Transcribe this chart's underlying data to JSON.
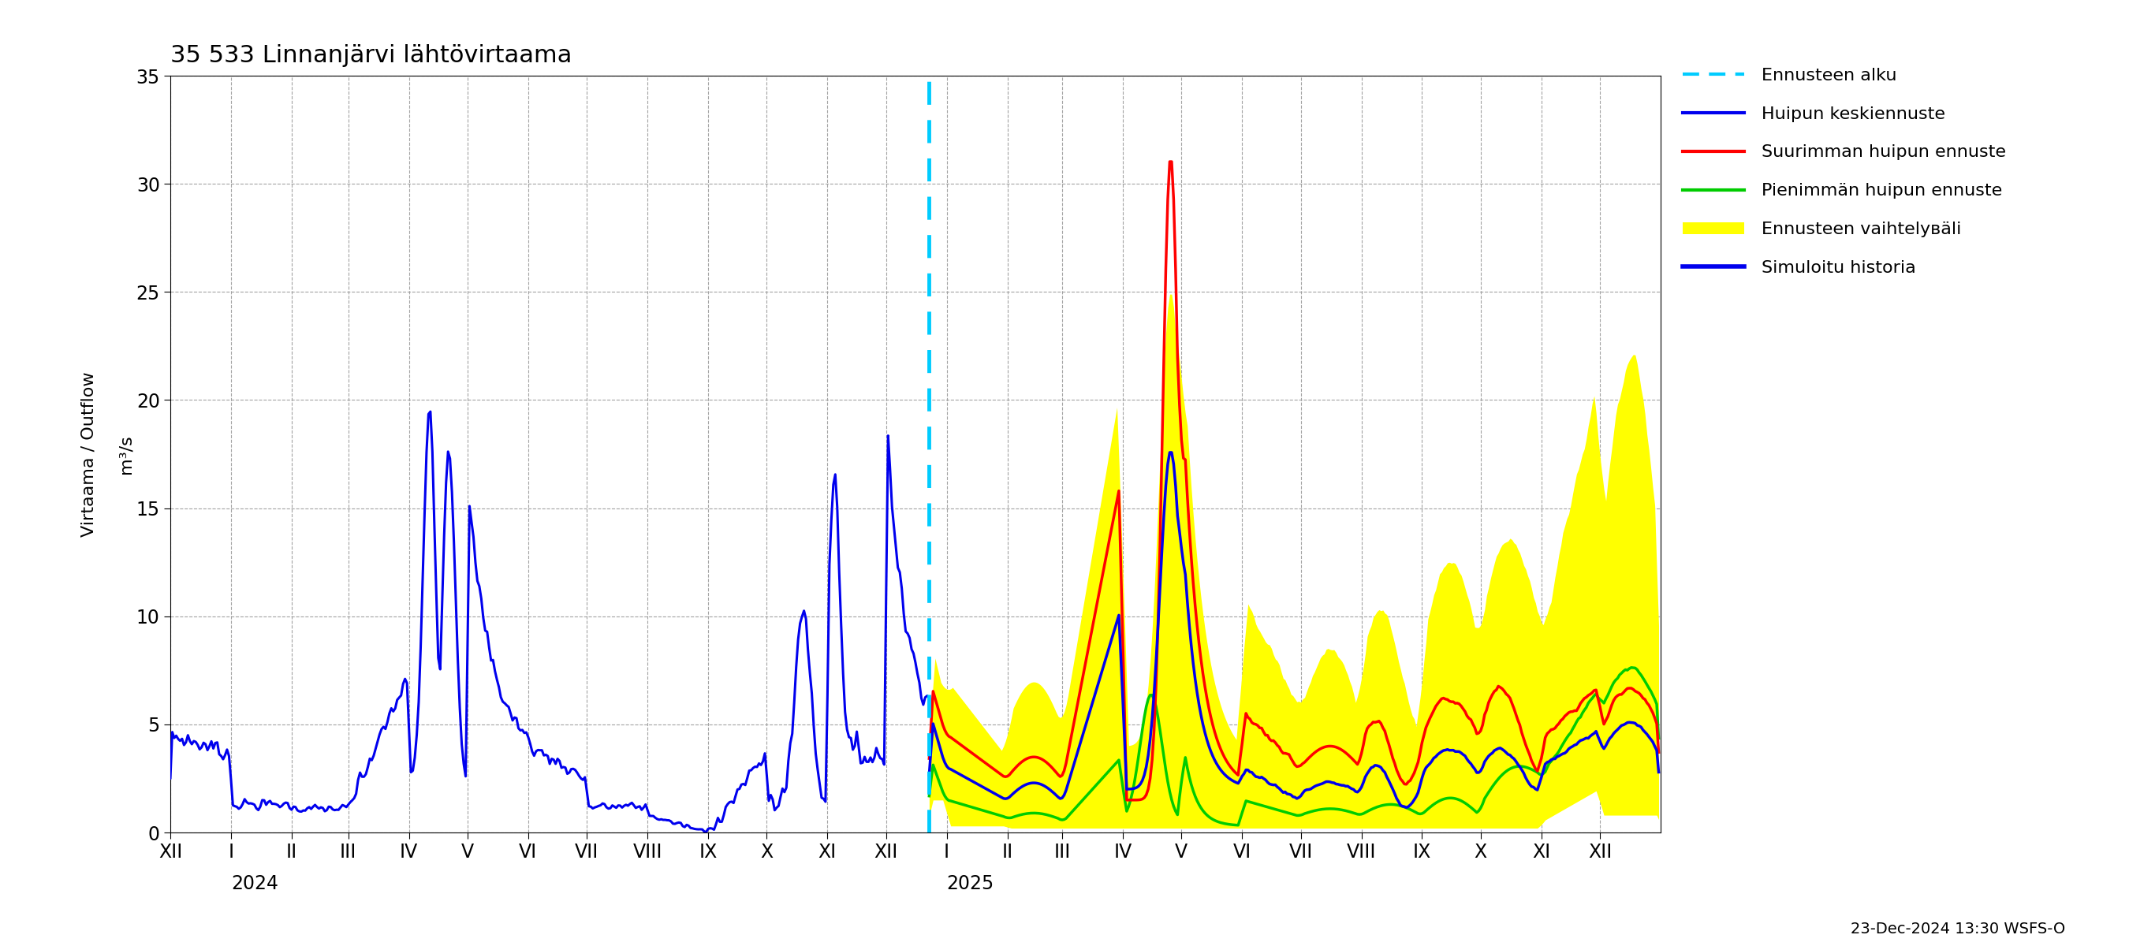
{
  "title": "35 533 Linnanjärvi lähtövirtaama",
  "ylabel1": "Virtaama / Outflow",
  "ylabel2": "m³/s",
  "ylim": [
    0,
    35
  ],
  "yticks": [
    0,
    5,
    10,
    15,
    20,
    25,
    30,
    35
  ],
  "footer": "23-Dec-2024 13:30 WSFS-O",
  "colors": {
    "history": "#0000ee",
    "mean_forecast": "#0000ee",
    "max_forecast": "#ff0000",
    "min_forecast": "#00cc00",
    "band": "#ffff00",
    "forecast_line": "#00ccff"
  },
  "roman": [
    "I",
    "II",
    "III",
    "IV",
    "V",
    "VI",
    "VII",
    "VIII",
    "IX",
    "X",
    "XI",
    "XII"
  ]
}
